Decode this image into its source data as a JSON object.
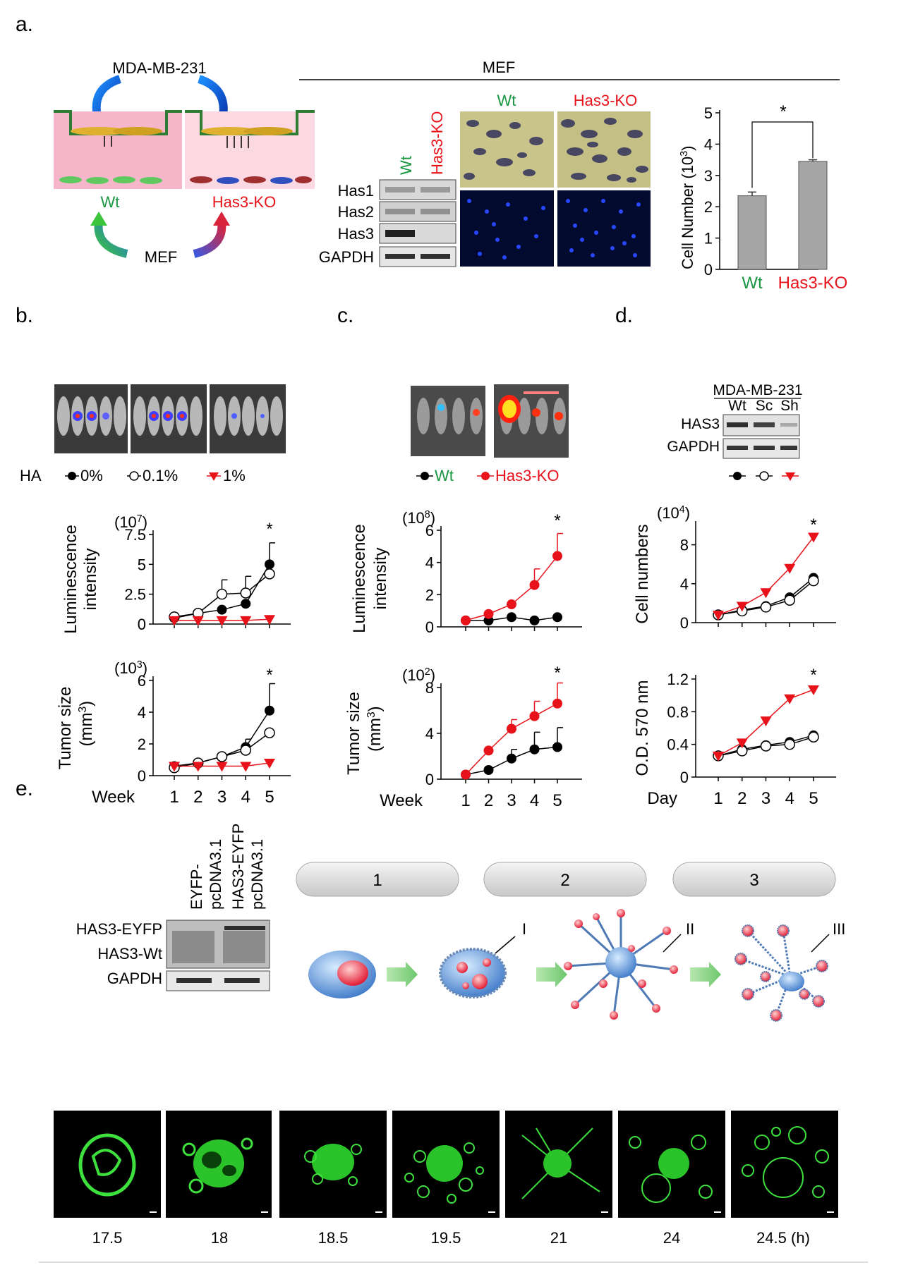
{
  "panels": {
    "a": "a.",
    "b": "b.",
    "c": "c.",
    "d": "d.",
    "e": "e."
  },
  "a": {
    "cell_line": "MDA-MB-231",
    "wt": "Wt",
    "ko": "Has3-KO",
    "mef": "MEF",
    "header": "MEF",
    "blot_rows": [
      "Has1",
      "Has2",
      "Has3",
      "GAPDH"
    ],
    "col_wt": "Wt",
    "col_ko": "Has3-KO",
    "bar_ylabel": "Cell Number (10",
    "bar_ylabel_sup": "3",
    "bar_ylabel_end": ")",
    "sig": "*"
  },
  "b": {
    "legend_prefix": "HA",
    "legend": [
      "0%",
      "0.1%",
      "1%"
    ]
  },
  "c": {
    "legend": [
      "Wt",
      "Has3-KO"
    ]
  },
  "d": {
    "cell_line": "MDA-MB-231",
    "lanes": [
      "Wt",
      "Sc",
      "Sh"
    ],
    "rows": [
      "HAS3",
      "GAPDH"
    ]
  },
  "e": {
    "lanes": [
      "EYFP-",
      "pcDNA3.1",
      "HAS3-EYFP",
      "pcDNA3.1"
    ],
    "rows": [
      "HAS3-EYFP",
      "HAS3-Wt",
      "GAPDH"
    ],
    "stages": [
      "1",
      "2",
      "3"
    ],
    "roman": [
      "I",
      "II",
      "III"
    ],
    "times": [
      "17.5",
      "18",
      "18.5",
      "19.5",
      "21",
      "24",
      "24.5 (h)"
    ]
  },
  "colors": {
    "wt": "#1a9641",
    "ko": "#e8121b",
    "red_series": "#e8121b",
    "black": "#000000",
    "bar": "#a6a6a6"
  },
  "chart_data": [
    {
      "id": "a-bar",
      "type": "bar",
      "categories": [
        "Wt",
        "Has3-KO"
      ],
      "values": [
        2.35,
        3.45
      ],
      "errors": [
        0.12,
        0.05
      ],
      "ylabel": "Cell Number (10³)",
      "ylim": [
        0,
        5
      ],
      "yticks": [
        "0",
        "1",
        "2",
        "3",
        "4",
        "5"
      ],
      "annotation": "*"
    },
    {
      "id": "b-lum",
      "type": "line",
      "x": [
        1,
        2,
        3,
        4,
        5
      ],
      "ylim": [
        0,
        7.5
      ],
      "yticks": [
        "0",
        "2.5",
        "5",
        "7.5"
      ],
      "exponent": "(10",
      "exp_sup": "7",
      "exp_end": ")",
      "ylabel": [
        "Luminescence",
        "intensity"
      ],
      "annotation": "*",
      "series": [
        {
          "name": "0%",
          "marker": "filled-circle",
          "color": "#000000",
          "values": [
            0.5,
            0.9,
            1.2,
            1.7,
            5.0
          ],
          "err": [
            0,
            0,
            0,
            0,
            1.8
          ]
        },
        {
          "name": "0.1%",
          "marker": "open-circle",
          "color": "#000000",
          "values": [
            0.6,
            0.9,
            2.5,
            2.6,
            4.2
          ],
          "err": [
            0,
            0,
            1.2,
            1.4,
            0
          ]
        },
        {
          "name": "1%",
          "marker": "triangle",
          "color": "#e8121b",
          "values": [
            0.3,
            0.3,
            0.3,
            0.3,
            0.4
          ],
          "err": [
            0,
            0,
            0,
            0,
            0
          ]
        }
      ]
    },
    {
      "id": "b-tumor",
      "type": "line",
      "x": [
        1,
        2,
        3,
        4,
        5
      ],
      "ylim": [
        0,
        6
      ],
      "yticks": [
        "0",
        "2",
        "4",
        "6"
      ],
      "exponent": "(10",
      "exp_sup": "3",
      "exp_end": ")",
      "ylabel": [
        "Tumor size",
        "(mm",
        "3",
        ")"
      ],
      "xlabel": "Week",
      "xticks": [
        "1",
        "2",
        "3",
        "4",
        "5"
      ],
      "annotation": "*",
      "series": [
        {
          "name": "0%",
          "marker": "filled-circle",
          "color": "#000000",
          "values": [
            0.6,
            0.8,
            1.2,
            1.8,
            4.1
          ],
          "err": [
            0,
            0,
            0,
            0.5,
            1.7
          ]
        },
        {
          "name": "0.1%",
          "marker": "open-circle",
          "color": "#000000",
          "values": [
            0.5,
            0.8,
            1.2,
            1.6,
            2.7
          ],
          "err": [
            0,
            0,
            0,
            0,
            0
          ]
        },
        {
          "name": "1%",
          "marker": "triangle",
          "color": "#e8121b",
          "values": [
            0.6,
            0.6,
            0.6,
            0.6,
            0.8
          ],
          "err": [
            0,
            0,
            0,
            0,
            0
          ]
        }
      ]
    },
    {
      "id": "c-lum",
      "type": "line",
      "x": [
        1,
        2,
        3,
        4,
        5
      ],
      "ylim": [
        0,
        6
      ],
      "yticks": [
        "0",
        "2",
        "4",
        "6"
      ],
      "exponent": "(10",
      "exp_sup": "8",
      "exp_end": ")",
      "ylabel": [
        "Luminescence",
        "intensity"
      ],
      "annotation": "*",
      "series": [
        {
          "name": "Wt",
          "marker": "filled-circle",
          "color": "#000000",
          "values": [
            0.4,
            0.4,
            0.6,
            0.4,
            0.6
          ],
          "err": [
            0,
            0,
            0,
            0,
            0
          ]
        },
        {
          "name": "Has3-KO",
          "marker": "filled-circle",
          "color": "#e8121b",
          "values": [
            0.4,
            0.8,
            1.4,
            2.6,
            4.4
          ],
          "err": [
            0,
            0,
            0,
            1.0,
            1.4
          ]
        }
      ]
    },
    {
      "id": "c-tumor",
      "type": "line",
      "x": [
        1,
        2,
        3,
        4,
        5
      ],
      "ylim": [
        0,
        8
      ],
      "yticks": [
        "0",
        "4",
        "8"
      ],
      "exponent": "(10",
      "exp_sup": "2",
      "exp_end": ")",
      "ylabel": [
        "Tumor size",
        "(mm",
        "3",
        ")"
      ],
      "xlabel": "Week",
      "xticks": [
        "1",
        "2",
        "3",
        "4",
        "5"
      ],
      "annotation": "*",
      "series": [
        {
          "name": "Wt",
          "marker": "filled-circle",
          "color": "#000000",
          "values": [
            0.4,
            0.8,
            1.8,
            2.6,
            2.8
          ],
          "err": [
            0,
            0,
            0.8,
            1.5,
            1.7
          ]
        },
        {
          "name": "Has3-KO",
          "marker": "filled-circle",
          "color": "#e8121b",
          "values": [
            0.4,
            2.5,
            4.4,
            5.5,
            6.6
          ],
          "err": [
            0,
            0,
            0.8,
            1.3,
            1.8
          ]
        }
      ]
    },
    {
      "id": "d-cells",
      "type": "line",
      "x": [
        1,
        2,
        3,
        4,
        5
      ],
      "ylim": [
        0,
        10
      ],
      "yticks": [
        "0",
        "4",
        "8"
      ],
      "exponent": "(10",
      "exp_sup": "4",
      "exp_end": ")",
      "ylabel": [
        "Cell numbers"
      ],
      "annotation": "*",
      "series": [
        {
          "name": "Wt",
          "marker": "filled-circle",
          "color": "#000000",
          "values": [
            0.8,
            1.3,
            1.7,
            2.6,
            4.6
          ],
          "err": [
            0,
            0,
            0,
            0,
            0
          ]
        },
        {
          "name": "Sc",
          "marker": "open-circle",
          "color": "#000000",
          "values": [
            0.8,
            1.2,
            1.6,
            2.3,
            4.3
          ],
          "err": [
            0,
            0,
            0,
            0,
            0
          ]
        },
        {
          "name": "Sh",
          "marker": "triangle",
          "color": "#e8121b",
          "values": [
            0.8,
            1.7,
            3.1,
            5.6,
            8.8
          ],
          "err": [
            0,
            0,
            0,
            0,
            0
          ]
        }
      ]
    },
    {
      "id": "d-od",
      "type": "line",
      "x": [
        1,
        2,
        3,
        4,
        5
      ],
      "ylim": [
        0,
        1.2
      ],
      "yticks": [
        "0",
        "0.4",
        "0.8",
        "1.2"
      ],
      "ylabel": [
        "O.D. 570 nm"
      ],
      "xlabel": "Day",
      "xticks": [
        "1",
        "2",
        "3",
        "4",
        "5"
      ],
      "annotation": "*",
      "series": [
        {
          "name": "Wt",
          "marker": "filled-circle",
          "color": "#000000",
          "values": [
            0.26,
            0.34,
            0.39,
            0.43,
            0.51
          ],
          "err": [
            0,
            0,
            0,
            0,
            0
          ]
        },
        {
          "name": "Sc",
          "marker": "open-circle",
          "color": "#000000",
          "values": [
            0.26,
            0.32,
            0.38,
            0.4,
            0.49
          ],
          "err": [
            0,
            0,
            0,
            0,
            0
          ]
        },
        {
          "name": "Sh",
          "marker": "triangle",
          "color": "#e8121b",
          "values": [
            0.26,
            0.42,
            0.69,
            0.96,
            1.07
          ],
          "err": [
            0,
            0,
            0,
            0,
            0
          ]
        }
      ]
    }
  ]
}
